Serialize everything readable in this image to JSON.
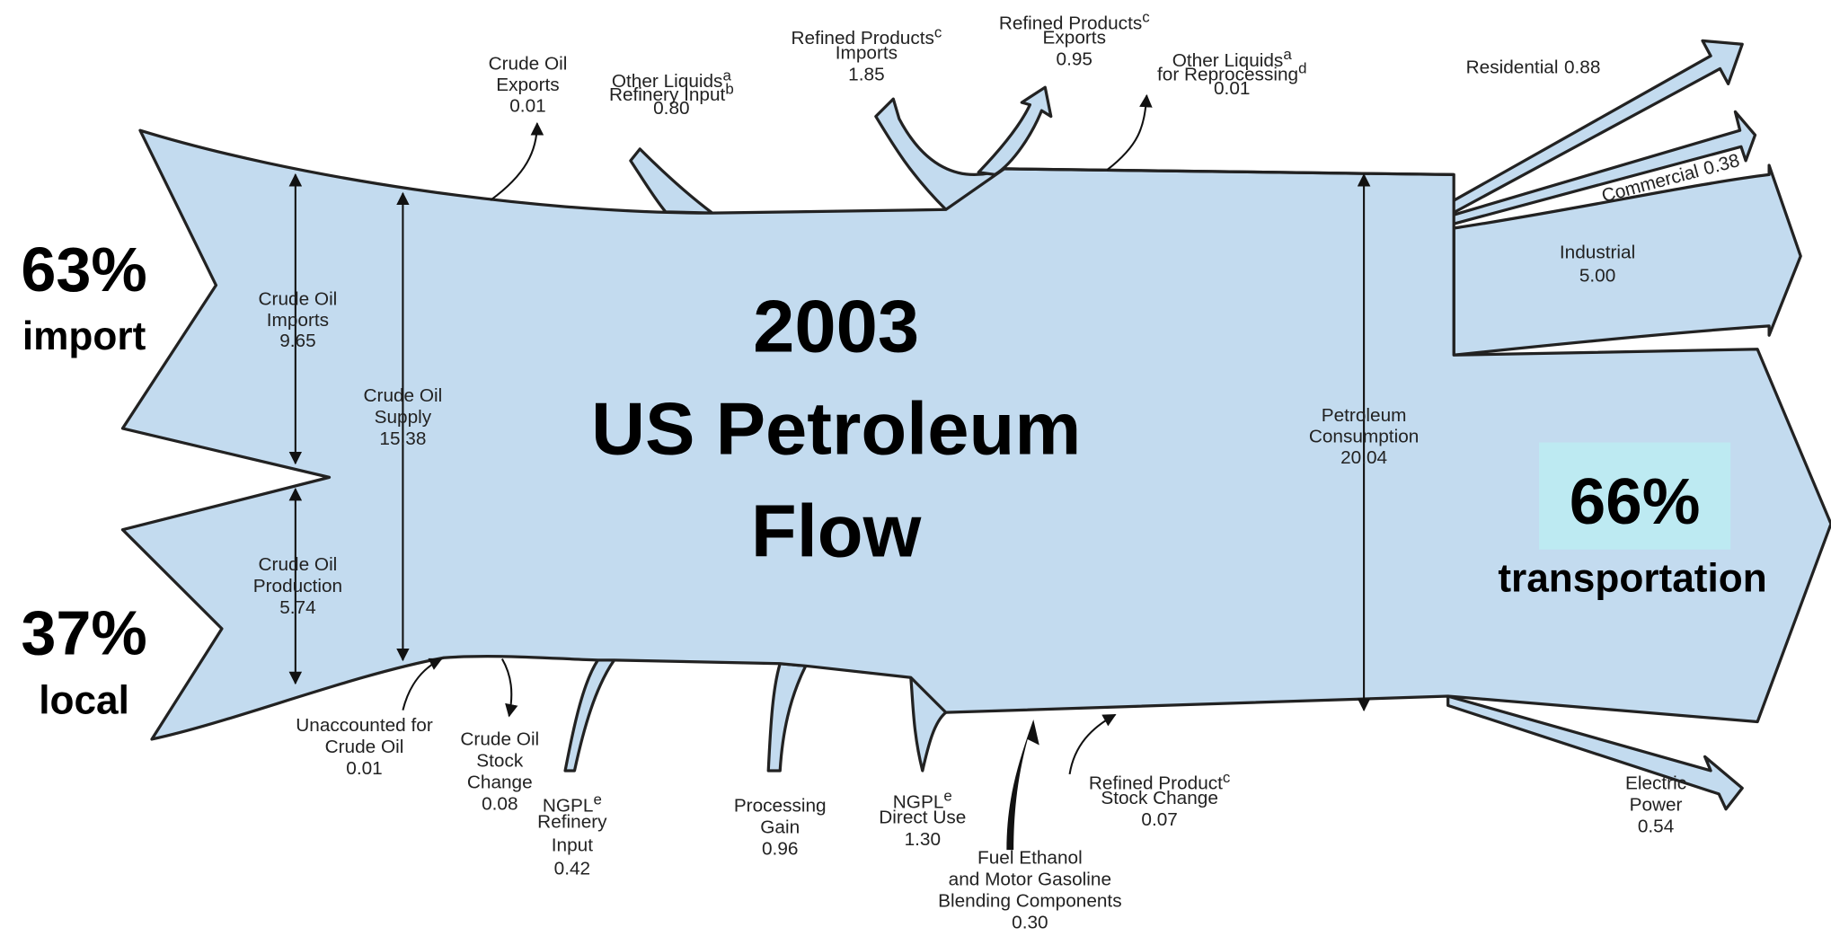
{
  "title": [
    "2003",
    "US Petroleum",
    "Flow"
  ],
  "side_labels": [
    {
      "pct": "63%",
      "word": "import"
    },
    {
      "pct": "37%",
      "word": "local"
    },
    {
      "pct": "66%",
      "word": "transportation"
    }
  ],
  "flows": [
    {
      "lines": [
        "Crude Oil",
        "Exports"
      ],
      "value": "0.01"
    },
    {
      "lines": [
        {
          "text": "Other Liquids",
          "sup": "a"
        },
        {
          "text": "Refinery Input",
          "sup": "b"
        }
      ],
      "value": "0.80"
    },
    {
      "lines": [
        {
          "text": "Refined Products",
          "sup": "c"
        },
        "Imports"
      ],
      "value": "1.85"
    },
    {
      "lines": [
        {
          "text": "Refined Products",
          "sup": "c"
        },
        "Exports"
      ],
      "value": "0.95"
    },
    {
      "lines": [
        {
          "text": "Other Liquids",
          "sup": "a"
        },
        {
          "text": "for Reprocessing",
          "sup": "d"
        }
      ],
      "value": "0.01"
    },
    {
      "lines": [
        "Residential"
      ],
      "value": "0.88"
    },
    {
      "lines": [
        "Commercial"
      ],
      "value": "0.38"
    },
    {
      "lines": [
        "Industrial"
      ],
      "value": "5.00"
    },
    {
      "lines": [
        "Crude Oil",
        "Imports"
      ],
      "value": "9.65"
    },
    {
      "lines": [
        "Crude Oil",
        "Supply"
      ],
      "value": "15.38"
    },
    {
      "lines": [
        "Crude Oil",
        "Production"
      ],
      "value": "5.74"
    },
    {
      "lines": [
        "Petroleum",
        "Consumption"
      ],
      "value": "20.04"
    },
    {
      "lines": [
        "Unaccounted for",
        "Crude Oil"
      ],
      "value": "0.01"
    },
    {
      "lines": [
        "Crude Oil",
        "Stock",
        "Change"
      ],
      "value": "0.08"
    },
    {
      "lines": [
        {
          "text": "NGPL",
          "sup": "e"
        },
        "Refinery",
        "Input"
      ],
      "value": "0.42"
    },
    {
      "lines": [
        "Processing",
        "Gain"
      ],
      "value": "0.96"
    },
    {
      "lines": [
        {
          "text": "NGPL",
          "sup": "e"
        },
        "Direct Use"
      ],
      "value": "1.30"
    },
    {
      "lines": [
        "Fuel Ethanol",
        "and Motor Gasoline",
        "Blending Components"
      ],
      "value": "0.30"
    },
    {
      "lines": [
        {
          "text": "Refined Product",
          "sup": "c"
        },
        "Stock Change"
      ],
      "value": "0.07"
    },
    {
      "lines": [
        "Electric",
        "Power"
      ],
      "value": "0.54"
    }
  ]
}
